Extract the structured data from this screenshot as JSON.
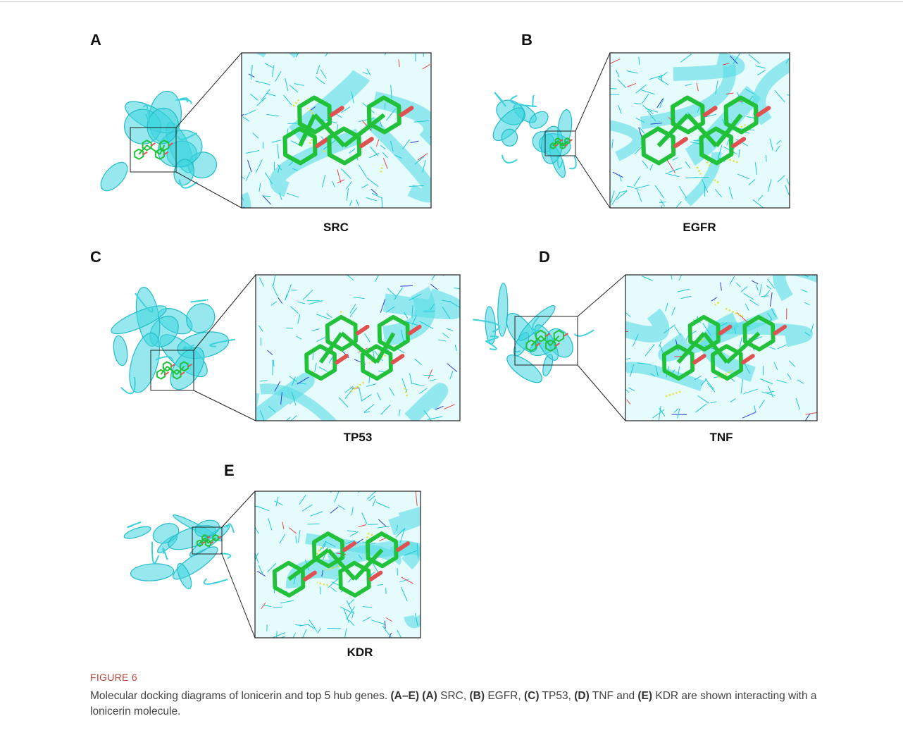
{
  "figure": {
    "panels": [
      {
        "letter": "A",
        "gene": "SRC"
      },
      {
        "letter": "B",
        "gene": "EGFR"
      },
      {
        "letter": "C",
        "gene": "TP53"
      },
      {
        "letter": "D",
        "gene": "TNF"
      },
      {
        "letter": "E",
        "gene": "KDR"
      }
    ],
    "label": "FIGURE 6",
    "caption": [
      {
        "text": "Molecular docking diagrams of lonicerin and top 5 hub genes. ",
        "bold": false
      },
      {
        "text": "(A–E) (A)",
        "bold": true
      },
      {
        "text": " SRC, ",
        "bold": false
      },
      {
        "text": "(B)",
        "bold": true
      },
      {
        "text": " EGFR, ",
        "bold": false
      },
      {
        "text": "(C)",
        "bold": true
      },
      {
        "text": " TP53, ",
        "bold": false
      },
      {
        "text": "(D)",
        "bold": true
      },
      {
        "text": " TNF and ",
        "bold": false
      },
      {
        "text": "(E)",
        "bold": true
      },
      {
        "text": " KDR are shown interacting with a lonicerin molecule.",
        "bold": false
      }
    ]
  }
}
